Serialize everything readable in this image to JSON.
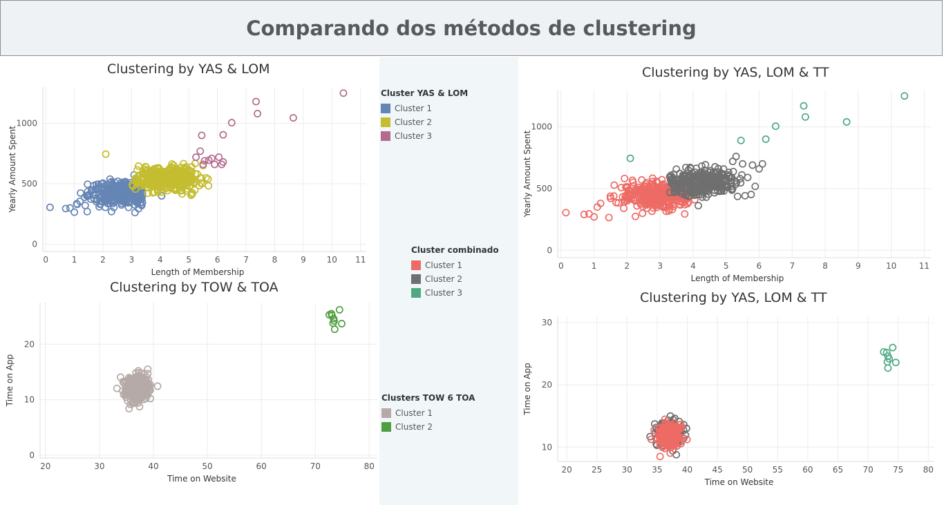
{
  "header": {
    "title": "Comparando dos métodos de clustering"
  },
  "legends": {
    "yas_lom": {
      "title": "Cluster YAS & LOM",
      "items": [
        {
          "label": "Cluster 1",
          "color": "#6585b4"
        },
        {
          "label": "Cluster 2",
          "color": "#c4bd30"
        },
        {
          "label": "Cluster 3",
          "color": "#b46b8e"
        }
      ]
    },
    "combinado": {
      "title": "Cluster combinado",
      "items": [
        {
          "label": "Cluster 1",
          "color": "#ee6b65"
        },
        {
          "label": "Cluster 2",
          "color": "#6f6f6f"
        },
        {
          "label": "Cluster 3",
          "color": "#4ea883"
        }
      ]
    },
    "tow_toa": {
      "title": "Clusters TOW 6 TOA",
      "items": [
        {
          "label": "Cluster 1",
          "color": "#b5aaa7"
        },
        {
          "label": "Cluster 2",
          "color": "#4f9e41"
        }
      ]
    }
  },
  "chart_data": [
    {
      "id": "c1",
      "type": "scatter",
      "title": "Clustering by YAS & LOM",
      "xlabel": "Length of Membership",
      "ylabel": "Yearly Amount Spent",
      "xlim": [
        -0.1,
        11.2
      ],
      "ylim": [
        -60,
        1300
      ],
      "xticks": [
        0,
        1,
        2,
        3,
        4,
        5,
        6,
        7,
        8,
        9,
        10,
        11
      ],
      "yticks": [
        0,
        500,
        1000
      ],
      "series": [
        {
          "color": "#6585b4",
          "gen": {
            "type": "blob",
            "cx": 2.7,
            "cy": 420,
            "sx": 0.6,
            "sy": 50,
            "n": 300,
            "seed": 11,
            "xmax": 3.4
          },
          "points": [
            [
              0.15,
              305
            ],
            [
              0.7,
              295
            ],
            [
              0.85,
              300
            ],
            [
              1.0,
              265
            ],
            [
              1.1,
              330
            ],
            [
              1.2,
              355
            ],
            [
              1.45,
              270
            ],
            [
              1.5,
              410
            ],
            [
              1.6,
              440
            ],
            [
              1.9,
              330
            ],
            [
              2.0,
              505
            ],
            [
              2.3,
              360
            ],
            [
              4.05,
              400
            ]
          ]
        },
        {
          "color": "#c4bd30",
          "gen": {
            "type": "blob",
            "cx": 4.2,
            "cy": 540,
            "sx": 0.55,
            "sy": 50,
            "n": 320,
            "seed": 22,
            "xmin": 3.0
          },
          "points": [
            [
              2.1,
              745
            ],
            [
              5.1,
              640
            ],
            [
              5.3,
              580
            ],
            [
              5.5,
              650
            ],
            [
              4.5,
              450
            ],
            [
              3.8,
              430
            ]
          ]
        },
        {
          "color": "#b46b8e",
          "points": [
            [
              5.25,
              720
            ],
            [
              5.4,
              770
            ],
            [
              5.5,
              660
            ],
            [
              5.55,
              690
            ],
            [
              5.7,
              695
            ],
            [
              5.8,
              710
            ],
            [
              5.9,
              660
            ],
            [
              6.05,
              720
            ],
            [
              6.15,
              660
            ],
            [
              6.2,
              680
            ],
            [
              5.45,
              900
            ],
            [
              6.2,
              905
            ],
            [
              6.5,
              1005
            ],
            [
              7.35,
              1180
            ],
            [
              7.4,
              1080
            ],
            [
              8.65,
              1045
            ],
            [
              10.4,
              1250
            ]
          ]
        }
      ]
    },
    {
      "id": "c2",
      "type": "scatter",
      "title": "Clustering by TOW & TOA",
      "xlabel": "Time on Website",
      "ylabel": "Time on App",
      "xlim": [
        19,
        81.5
      ],
      "ylim": [
        -0.5,
        27.5
      ],
      "xticks": [
        20,
        30,
        40,
        50,
        60,
        70,
        80
      ],
      "yticks": [
        0,
        10,
        20
      ],
      "series": [
        {
          "color": "#b5aaa7",
          "gen": {
            "type": "blob",
            "cx": 37,
            "cy": 12,
            "sx": 1.05,
            "sy": 1.05,
            "n": 450,
            "seed": 33
          },
          "points": [
            [
              35.5,
              8.4
            ],
            [
              37.2,
              15.2
            ]
          ]
        },
        {
          "color": "#4f9e41",
          "points": [
            [
              72.6,
              25.3
            ],
            [
              73.1,
              25.2
            ],
            [
              73.4,
              24.6
            ],
            [
              73.5,
              24.2
            ],
            [
              73.3,
              23.8
            ],
            [
              73.6,
              22.7
            ],
            [
              74.5,
              26.2
            ],
            [
              74.9,
              23.7
            ],
            [
              73.0,
              25.5
            ]
          ]
        }
      ]
    },
    {
      "id": "c3",
      "type": "scatter",
      "title": "Clustering by YAS, LOM & TT",
      "xlabel": "Length of Membership",
      "ylabel": "Yearly Amount Spent",
      "xlim": [
        -0.1,
        11.2
      ],
      "ylim": [
        -60,
        1300
      ],
      "xticks": [
        0,
        1,
        2,
        3,
        4,
        5,
        6,
        7,
        8,
        9,
        10,
        11
      ],
      "yticks": [
        0,
        500,
        1000
      ],
      "series": [
        {
          "color": "#ee6b65",
          "gen": {
            "type": "blob",
            "cx": 3.0,
            "cy": 440,
            "sx": 0.6,
            "sy": 55,
            "n": 320,
            "seed": 44,
            "xmax": 3.9
          },
          "points": [
            [
              0.15,
              305
            ],
            [
              0.7,
              290
            ],
            [
              0.85,
              295
            ],
            [
              1.0,
              270
            ],
            [
              1.1,
              350
            ],
            [
              1.2,
              380
            ],
            [
              1.45,
              265
            ],
            [
              1.5,
              420
            ],
            [
              1.6,
              440
            ],
            [
              1.9,
              340
            ],
            [
              2.0,
              515
            ],
            [
              2.3,
              360
            ],
            [
              4.05,
              410
            ]
          ]
        },
        {
          "color": "#6f6f6f",
          "gen": {
            "type": "blob",
            "cx": 4.3,
            "cy": 550,
            "sx": 0.55,
            "sy": 55,
            "n": 300,
            "seed": 55,
            "xmin": 3.3
          },
          "points": [
            [
              5.3,
              760
            ],
            [
              5.5,
              700
            ],
            [
              5.8,
              690
            ],
            [
              6.1,
              700
            ],
            [
              6.0,
              660
            ],
            [
              5.2,
              720
            ],
            [
              4.4,
              430
            ]
          ]
        },
        {
          "color": "#4ea883",
          "points": [
            [
              2.1,
              745
            ],
            [
              5.45,
              890
            ],
            [
              6.2,
              900
            ],
            [
              6.5,
              1005
            ],
            [
              7.35,
              1170
            ],
            [
              7.4,
              1080
            ],
            [
              8.65,
              1040
            ],
            [
              10.4,
              1250
            ]
          ]
        }
      ]
    },
    {
      "id": "c4",
      "type": "scatter",
      "title": "Clustering by YAS, LOM & TT",
      "xlabel": "Time on Website",
      "ylabel": "Time on App",
      "xlim": [
        18.5,
        81
      ],
      "ylim": [
        7.7,
        31
      ],
      "xticks": [
        20,
        25,
        30,
        35,
        40,
        45,
        50,
        55,
        60,
        65,
        70,
        75,
        80
      ],
      "yticks": [
        10,
        20,
        30
      ],
      "series": [
        {
          "color": "#6f6f6f",
          "gen": {
            "type": "blob",
            "cx": 37,
            "cy": 12,
            "sx": 1.0,
            "sy": 1.0,
            "n": 180,
            "seed": 66
          },
          "points": [
            [
              37.2,
              15.0
            ],
            [
              37.6,
              9.4
            ]
          ]
        },
        {
          "color": "#ee6b65",
          "gen": {
            "type": "blob",
            "cx": 37,
            "cy": 11.8,
            "sx": 0.85,
            "sy": 0.85,
            "n": 350,
            "seed": 77
          },
          "points": [
            [
              35.5,
              8.5
            ]
          ]
        },
        {
          "color": "#4ea883",
          "points": [
            [
              72.6,
              25.3
            ],
            [
              73.1,
              25.2
            ],
            [
              73.3,
              24.6
            ],
            [
              73.2,
              23.7
            ],
            [
              73.3,
              22.7
            ],
            [
              74.1,
              26.0
            ],
            [
              74.6,
              23.6
            ],
            [
              73.5,
              24.2
            ]
          ]
        }
      ]
    }
  ]
}
